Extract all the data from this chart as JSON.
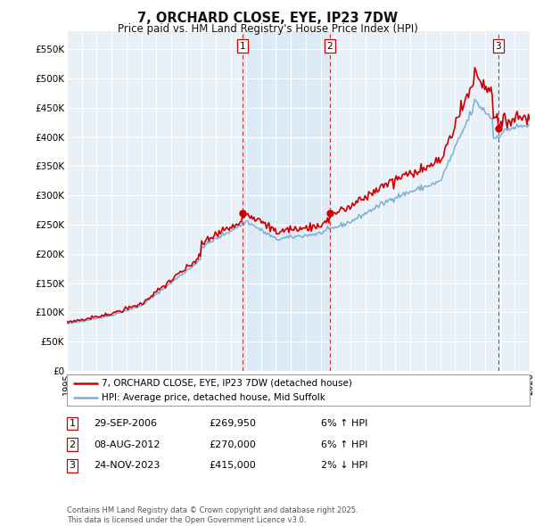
{
  "title": "7, ORCHARD CLOSE, EYE, IP23 7DW",
  "subtitle": "Price paid vs. HM Land Registry's House Price Index (HPI)",
  "background_color": "#ffffff",
  "plot_bg_color": "#e8f0f8",
  "grid_color": "#ffffff",
  "line_color_property": "#cc0000",
  "line_color_hpi": "#7ab0d4",
  "shade_color": "#d6e8f5",
  "transactions": [
    {
      "date_num": 2006.75,
      "price": 269950,
      "label": "1"
    },
    {
      "date_num": 2012.6,
      "price": 270000,
      "label": "2"
    },
    {
      "date_num": 2023.9,
      "price": 415000,
      "label": "3"
    }
  ],
  "transaction_labels": [
    {
      "num": "1",
      "date": "29-SEP-2006",
      "price": "£269,950",
      "pct": "6%",
      "dir": "↑",
      "rel": "HPI"
    },
    {
      "num": "2",
      "date": "08-AUG-2012",
      "price": "£270,000",
      "pct": "6%",
      "dir": "↑",
      "rel": "HPI"
    },
    {
      "num": "3",
      "date": "24-NOV-2023",
      "price": "£415,000",
      "pct": "2%",
      "dir": "↓",
      "rel": "HPI"
    }
  ],
  "legend_line1": "7, ORCHARD CLOSE, EYE, IP23 7DW (detached house)",
  "legend_line2": "HPI: Average price, detached house, Mid Suffolk",
  "footer_line1": "Contains HM Land Registry data © Crown copyright and database right 2025.",
  "footer_line2": "This data is licensed under the Open Government Licence v3.0.",
  "xmin": 1995,
  "xmax": 2026,
  "ymin": 0,
  "ymax": 580000,
  "yticks": [
    0,
    50000,
    100000,
    150000,
    200000,
    250000,
    300000,
    350000,
    400000,
    450000,
    500000,
    550000
  ],
  "ytick_labels": [
    "£0",
    "£50K",
    "£100K",
    "£150K",
    "£200K",
    "£250K",
    "£300K",
    "£350K",
    "£400K",
    "£450K",
    "£500K",
    "£550K"
  ]
}
